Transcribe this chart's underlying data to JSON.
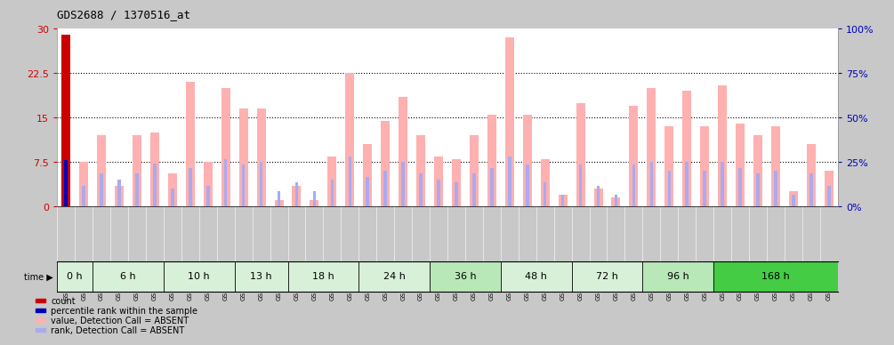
{
  "title": "GDS2688 / 1370516_at",
  "samples": [
    "GSM112209",
    "GSM112210",
    "GSM114869",
    "GSM115079",
    "GSM114896",
    "GSM114897",
    "GSM114898",
    "GSM114899",
    "GSM114870",
    "GSM114871",
    "GSM114872",
    "GSM114873",
    "GSM114874",
    "GSM114875",
    "GSM114876",
    "GSM114877",
    "GSM114882",
    "GSM114883",
    "GSM114884",
    "GSM114885",
    "GSM114886",
    "GSM114893",
    "GSM115077",
    "GSM115078",
    "GSM114887",
    "GSM114888",
    "GSM114889",
    "GSM114890",
    "GSM114891",
    "GSM114892",
    "GSM114894",
    "GSM114895",
    "GSM114900",
    "GSM114901",
    "GSM114902",
    "GSM114903",
    "GSM114904",
    "GSM114905",
    "GSM114906",
    "GSM115076",
    "GSM114878",
    "GSM114879",
    "GSM114880",
    "GSM114881"
  ],
  "time_groups": [
    {
      "label": "0 h",
      "start": 0,
      "end": 2,
      "color": "#d8f0d8"
    },
    {
      "label": "6 h",
      "start": 2,
      "end": 6,
      "color": "#d8f0d8"
    },
    {
      "label": "10 h",
      "start": 6,
      "end": 10,
      "color": "#d8f0d8"
    },
    {
      "label": "13 h",
      "start": 10,
      "end": 13,
      "color": "#d8f0d8"
    },
    {
      "label": "18 h",
      "start": 13,
      "end": 17,
      "color": "#d8f0d8"
    },
    {
      "label": "24 h",
      "start": 17,
      "end": 21,
      "color": "#d8f0d8"
    },
    {
      "label": "36 h",
      "start": 21,
      "end": 25,
      "color": "#b8e8b8"
    },
    {
      "label": "48 h",
      "start": 25,
      "end": 29,
      "color": "#d8f0d8"
    },
    {
      "label": "72 h",
      "start": 29,
      "end": 33,
      "color": "#d8f0d8"
    },
    {
      "label": "96 h",
      "start": 33,
      "end": 37,
      "color": "#b8e8b8"
    },
    {
      "label": "168 h",
      "start": 37,
      "end": 44,
      "color": "#44cc44"
    }
  ],
  "value_bars": [
    29.0,
    7.5,
    12.0,
    3.5,
    12.0,
    12.5,
    5.5,
    21.0,
    7.5,
    20.0,
    16.5,
    16.5,
    1.0,
    3.5,
    1.0,
    8.5,
    22.5,
    10.5,
    14.5,
    18.5,
    12.0,
    8.5,
    8.0,
    12.0,
    15.5,
    28.5,
    15.5,
    8.0,
    2.0,
    17.5,
    3.0,
    1.5,
    17.0,
    20.0,
    13.5,
    19.5,
    13.5,
    20.5,
    14.0,
    12.0,
    13.5,
    2.5,
    10.5,
    6.0
  ],
  "rank_bars": [
    7.8,
    3.5,
    5.5,
    4.5,
    5.5,
    7.2,
    3.0,
    6.5,
    3.5,
    8.0,
    7.0,
    7.5,
    2.5,
    4.0,
    2.5,
    4.5,
    8.5,
    5.0,
    6.0,
    7.5,
    5.5,
    4.5,
    4.0,
    5.5,
    6.5,
    8.5,
    7.0,
    4.0,
    2.0,
    7.0,
    3.5,
    2.0,
    7.0,
    7.5,
    6.0,
    7.5,
    6.0,
    7.5,
    6.5,
    5.5,
    6.0,
    2.0,
    5.5,
    3.5
  ],
  "count_val": 29.0,
  "percentile_val": 7.8,
  "ylim_left": [
    0,
    30
  ],
  "ylim_right": [
    0,
    100
  ],
  "yticks_left": [
    0,
    7.5,
    15,
    22.5,
    30
  ],
  "yticks_right": [
    0,
    25,
    50,
    75,
    100
  ],
  "ytick_labels_left": [
    "0",
    "7.5",
    "15",
    "22.5",
    "30"
  ],
  "ytick_labels_right": [
    "0%",
    "25%",
    "50%",
    "75%",
    "100%"
  ],
  "value_bar_color": "#ffb0b0",
  "rank_bar_color": "#aaaaee",
  "count_bar_color": "#cc0000",
  "percentile_bar_color": "#0000bb",
  "plot_bg_color": "#ffffff",
  "xticklabel_bg": "#c8c8c8",
  "left_axis_color": "#cc0000",
  "right_axis_color": "#0000bb",
  "grid_color": "#000000",
  "time_band_bg": "#c0c0c0",
  "legend_items": [
    {
      "color": "#cc0000",
      "label": "count"
    },
    {
      "color": "#0000bb",
      "label": "percentile rank within the sample"
    },
    {
      "color": "#ffb0b0",
      "label": "value, Detection Call = ABSENT"
    },
    {
      "color": "#aaaaee",
      "label": "rank, Detection Call = ABSENT"
    }
  ]
}
